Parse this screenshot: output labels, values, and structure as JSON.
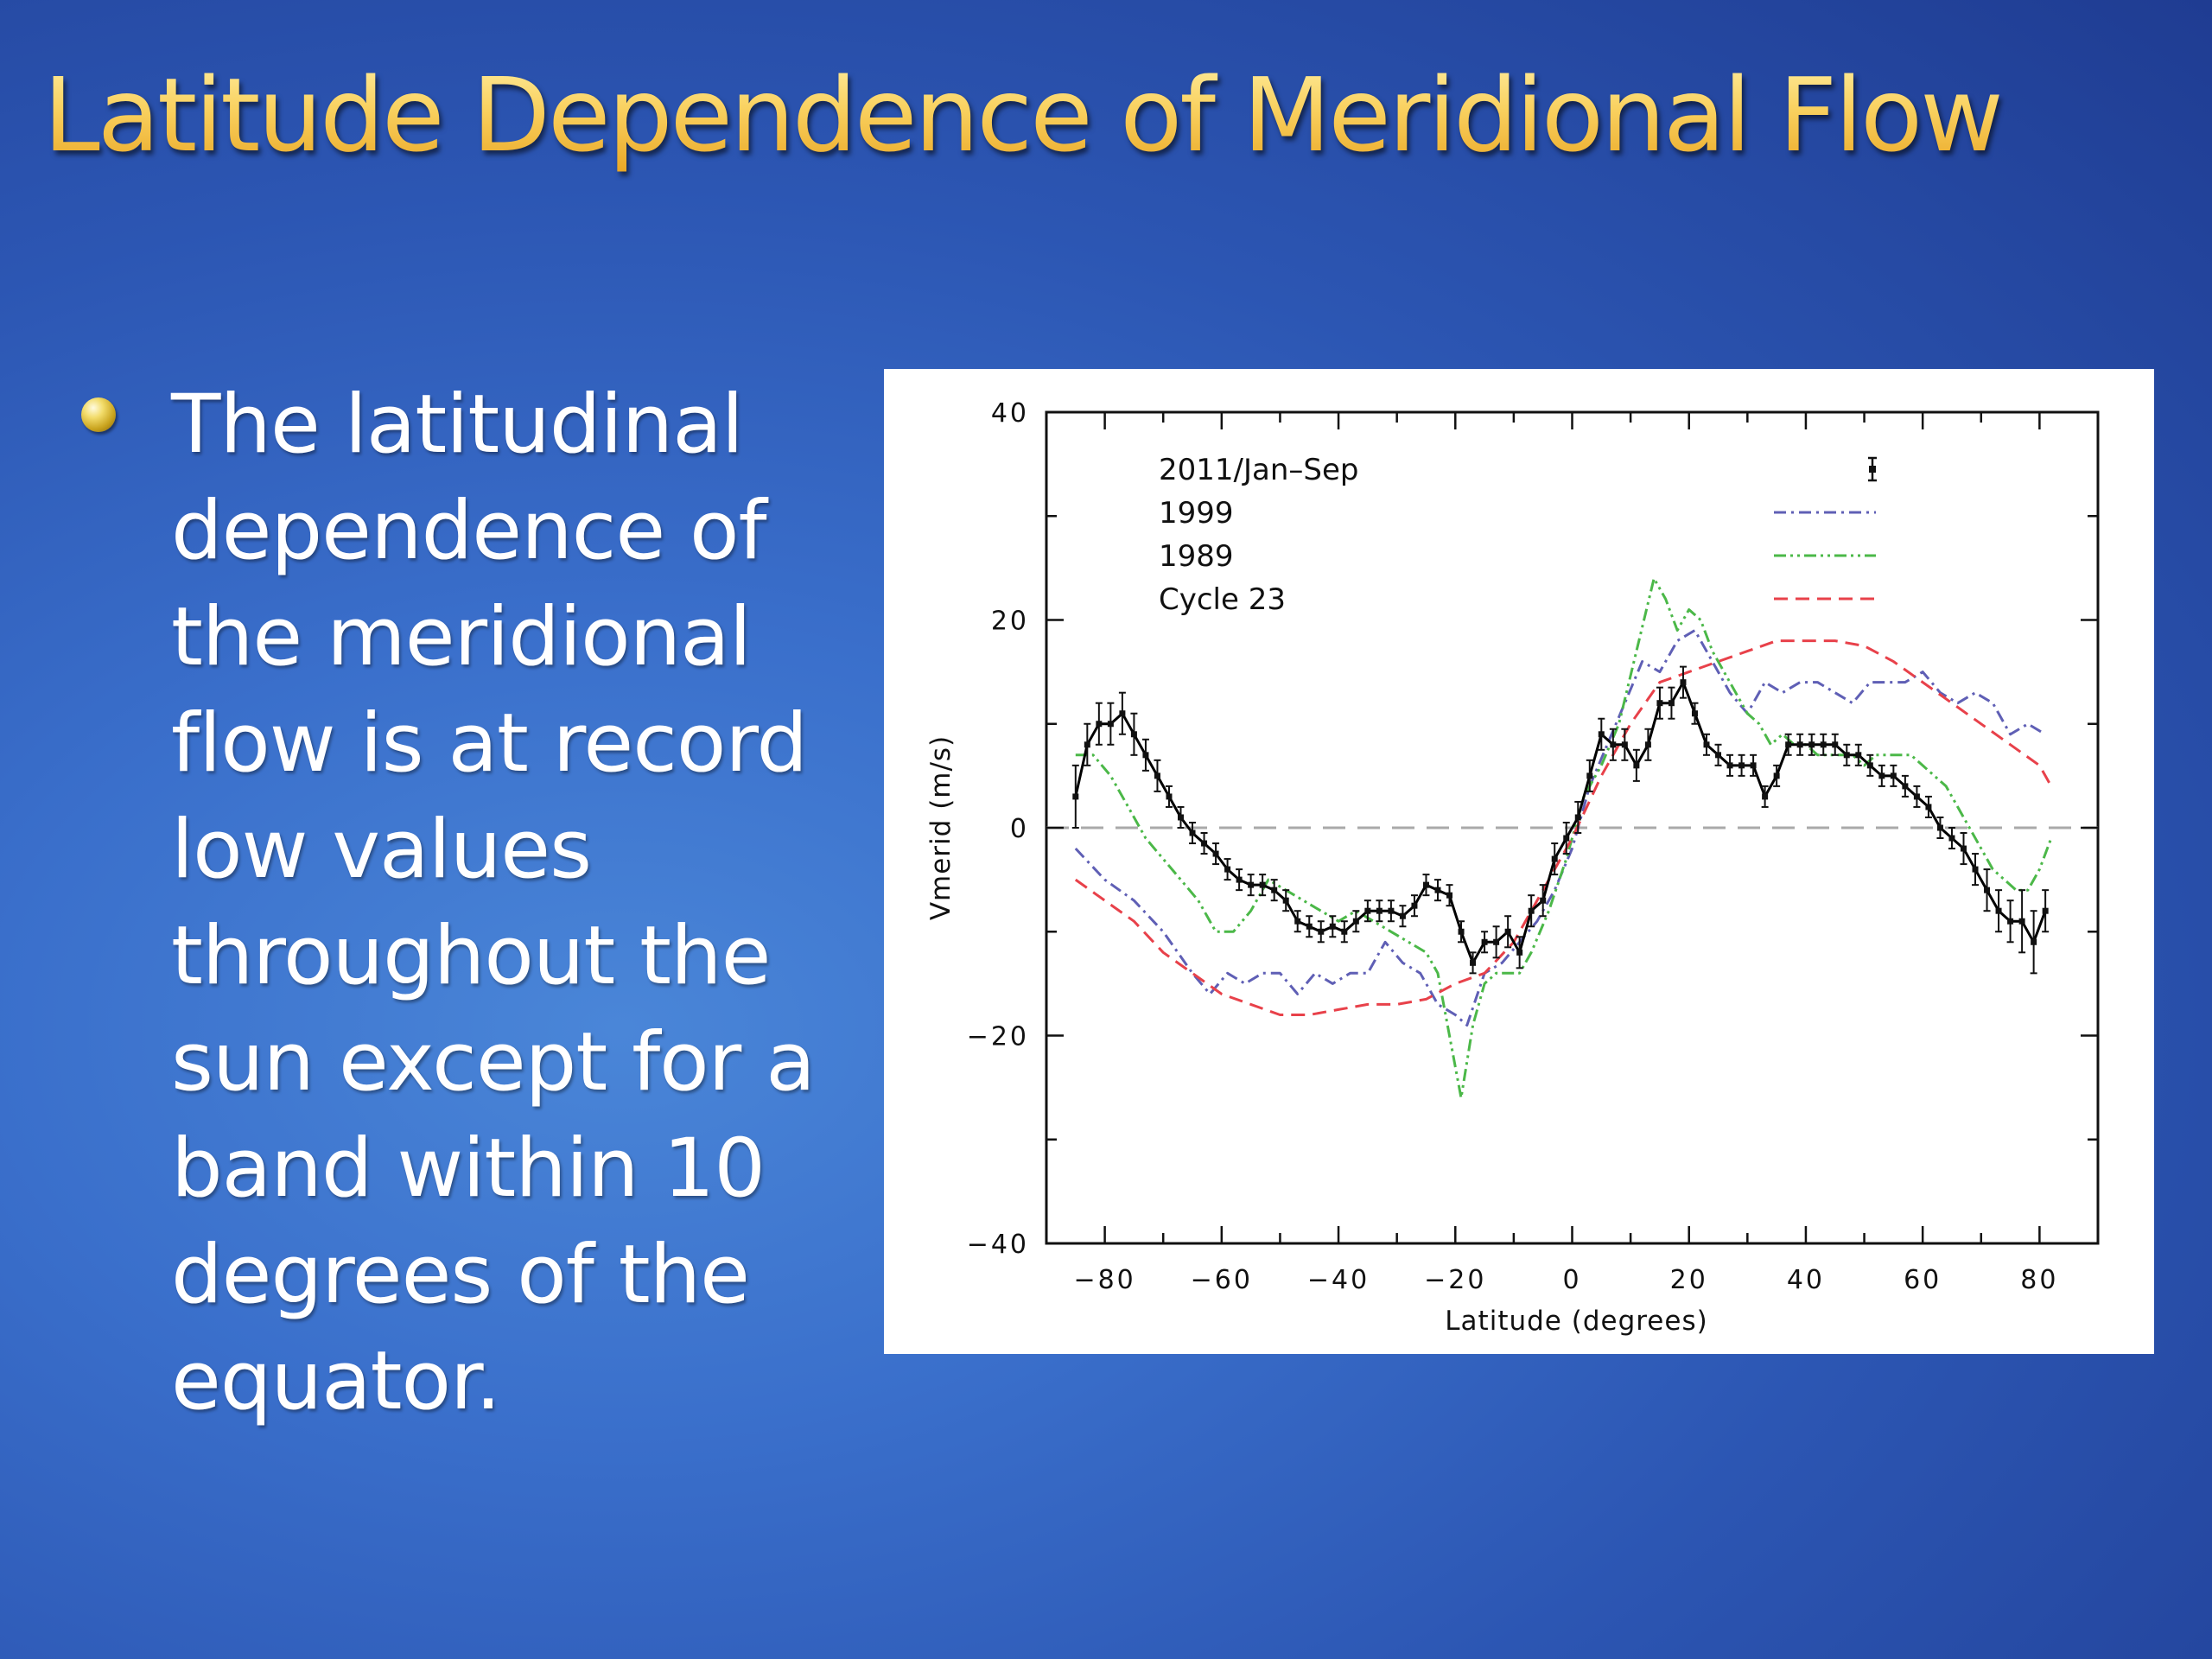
{
  "slide": {
    "title": "Latitude Dependence of Meridional Flow",
    "bullet": "The latitudinal dependence of the meridional flow is at record low values throughout the sun except for a band within 10 degrees of the equator."
  },
  "chart_data": {
    "type": "line",
    "xlabel": "Latitude  (degrees)",
    "ylabel": "Vmerid  (m/s)",
    "xlim": [
      -90,
      90
    ],
    "ylim": [
      -40,
      40
    ],
    "xticks": [
      -80,
      -60,
      -40,
      -20,
      0,
      20,
      40,
      60,
      80
    ],
    "yticks": [
      -40,
      -20,
      0,
      20,
      40
    ],
    "zero_line": "dashed gray",
    "grid": false,
    "legend_position": "top-left",
    "series": [
      {
        "name": "2011/Jan–Sep",
        "style": "solid-errorbars",
        "color": "#000000",
        "x": [
          -85,
          -83,
          -81,
          -79,
          -77,
          -75,
          -73,
          -71,
          -69,
          -67,
          -65,
          -63,
          -61,
          -59,
          -57,
          -55,
          -53,
          -51,
          -49,
          -47,
          -45,
          -43,
          -41,
          -39,
          -37,
          -35,
          -33,
          -31,
          -29,
          -27,
          -25,
          -23,
          -21,
          -19,
          -17,
          -15,
          -13,
          -11,
          -9,
          -7,
          -5,
          -3,
          -1,
          1,
          3,
          5,
          7,
          9,
          11,
          13,
          15,
          17,
          19,
          21,
          23,
          25,
          27,
          29,
          31,
          33,
          35,
          37,
          39,
          41,
          43,
          45,
          47,
          49,
          51,
          53,
          55,
          57,
          59,
          61,
          63,
          65,
          67,
          69,
          71,
          73,
          75,
          77,
          79,
          81
        ],
        "y": [
          3,
          8,
          10,
          10,
          11,
          9,
          7,
          5,
          3,
          1,
          -0.5,
          -1.5,
          -2.5,
          -4,
          -5,
          -5.5,
          -5.5,
          -6,
          -7,
          -9,
          -9.5,
          -10,
          -9.5,
          -10,
          -9,
          -8,
          -8,
          -8,
          -8.5,
          -7.5,
          -5.5,
          -6,
          -6.5,
          -10,
          -13,
          -11,
          -11,
          -10,
          -12,
          -8,
          -7,
          -3,
          -1,
          1,
          5,
          9,
          8,
          8,
          6,
          8,
          12,
          12,
          14,
          11,
          8,
          7,
          6,
          6,
          6,
          3,
          5,
          8,
          8,
          8,
          8,
          8,
          7,
          7,
          6,
          5,
          5,
          4,
          3,
          2,
          0,
          -1,
          -2,
          -4,
          -6,
          -8,
          -9,
          -9,
          -11,
          -8
        ],
        "err": [
          3,
          2,
          2,
          2,
          2,
          2,
          1.5,
          1.5,
          1,
          1,
          1,
          1,
          1,
          1,
          1,
          1,
          1,
          1,
          1,
          1,
          1,
          1,
          1,
          1,
          1,
          1,
          1,
          1,
          1,
          1,
          1,
          1,
          1,
          1,
          1,
          1,
          1.5,
          1.5,
          1.5,
          1.5,
          1.5,
          1.5,
          1.5,
          1.5,
          1.5,
          1.5,
          1.5,
          1.5,
          1.5,
          1.5,
          1.5,
          1.5,
          1.5,
          1,
          1,
          1,
          1,
          1,
          1,
          1,
          1,
          1,
          1,
          1,
          1,
          1,
          1,
          1,
          1,
          1,
          1,
          1,
          1,
          1,
          1,
          1,
          1.5,
          1.5,
          2,
          2,
          2,
          3,
          3,
          2
        ]
      },
      {
        "name": "1999",
        "style": "dash-dot",
        "color": "#5f5fb5",
        "x": [
          -85,
          -80,
          -75,
          -70,
          -65,
          -62,
          -59,
          -56,
          -53,
          -50,
          -47,
          -44,
          -41,
          -38,
          -35,
          -32,
          -29,
          -26,
          -23,
          -20,
          -18,
          -15,
          -12,
          -9,
          -6,
          -3,
          0,
          3,
          6,
          9,
          12,
          15,
          18,
          21,
          24,
          27,
          30,
          33,
          36,
          39,
          42,
          45,
          48,
          51,
          54,
          57,
          60,
          63,
          66,
          69,
          72,
          75,
          78,
          81
        ],
        "y": [
          -2,
          -5,
          -7,
          -10,
          -14,
          -16,
          -14,
          -15,
          -14,
          -14,
          -16,
          -14,
          -15,
          -14,
          -14,
          -11,
          -13,
          -14,
          -17,
          -18,
          -19,
          -14,
          -13,
          -11,
          -9,
          -6,
          -2,
          4,
          8,
          12,
          16,
          15,
          18,
          19,
          16,
          13,
          11,
          14,
          13,
          14,
          14,
          13,
          12,
          14,
          14,
          14,
          15,
          13,
          12,
          13,
          12,
          9,
          10,
          9
        ]
      },
      {
        "name": "1989",
        "style": "dash-dot-dot",
        "color": "#4bb848",
        "x": [
          -85,
          -82,
          -79,
          -76,
          -73,
          -70,
          -67,
          -64,
          -61,
          -58,
          -55,
          -52,
          -49,
          -46,
          -43,
          -40,
          -37,
          -34,
          -31,
          -28,
          -25,
          -23,
          -21,
          -19,
          -17,
          -15,
          -13,
          -11,
          -9,
          -7,
          -4,
          -1,
          2,
          5,
          8,
          11,
          14,
          16,
          18,
          20,
          22,
          24,
          26,
          28,
          30,
          32,
          34,
          36,
          38,
          40,
          42,
          44,
          46,
          48,
          50,
          52,
          54,
          56,
          58,
          60,
          62,
          64,
          66,
          68,
          70,
          72,
          74,
          76,
          78,
          80,
          82
        ],
        "y": [
          7,
          7,
          5,
          2,
          -1,
          -3,
          -5,
          -7,
          -10,
          -10,
          -8,
          -5,
          -6,
          -7,
          -8,
          -9,
          -8,
          -9,
          -10,
          -11,
          -12,
          -14,
          -20,
          -26,
          -19,
          -15,
          -14,
          -14,
          -14,
          -12,
          -8,
          -3,
          3,
          6,
          10,
          17,
          24,
          22,
          19,
          21,
          20,
          17,
          15,
          13,
          11,
          10,
          8,
          9,
          8,
          8,
          7,
          7,
          7,
          7,
          6,
          7,
          7,
          7,
          7,
          6,
          5,
          4,
          2,
          0,
          -2,
          -4,
          -5,
          -6,
          -6,
          -4,
          -1
        ]
      },
      {
        "name": "Cycle 23",
        "style": "dashed",
        "color": "#e8414a",
        "x": [
          -85,
          -80,
          -75,
          -70,
          -65,
          -60,
          -55,
          -50,
          -45,
          -40,
          -35,
          -30,
          -25,
          -20,
          -15,
          -10,
          -5,
          0,
          5,
          10,
          15,
          20,
          25,
          30,
          35,
          40,
          45,
          50,
          55,
          60,
          65,
          70,
          75,
          80,
          82
        ],
        "y": [
          -5,
          -7,
          -9,
          -12,
          -14,
          -16,
          -17,
          -18,
          -18,
          -17.5,
          -17,
          -17,
          -16.5,
          -15,
          -14,
          -11,
          -6,
          -1,
          5,
          10,
          14,
          15,
          16,
          17,
          18,
          18,
          18,
          17.5,
          16,
          14,
          12,
          10,
          8,
          6,
          4
        ]
      }
    ]
  }
}
